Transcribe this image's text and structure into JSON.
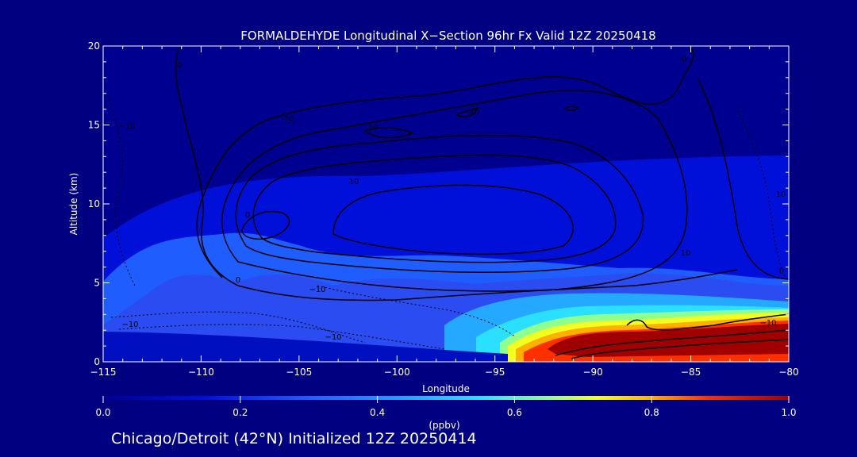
{
  "colors": {
    "background": "#000080",
    "text": "#ffffff",
    "contour": "#000000",
    "colormap": [
      "#000090",
      "#0010d8",
      "#1f5dff",
      "#25a8ff",
      "#2be0ff",
      "#8fff8f",
      "#f2ff20",
      "#ffb000",
      "#ff3000",
      "#a00000"
    ]
  },
  "chart_data": {
    "type": "heatmap",
    "title": "FORMALDEHYDE Longitudinal X−Section 96hr  Fx Valid 12Z 20250418",
    "xlabel": "Longitude",
    "ylabel": "Altitude (km)",
    "xlim": [
      -115,
      -80
    ],
    "ylim": [
      0,
      20
    ],
    "x_ticks": [
      -115,
      -110,
      -105,
      -100,
      -95,
      -90,
      -85,
      -80
    ],
    "x_tick_labels": [
      "−115",
      "−110",
      "−105",
      "−100",
      "−95",
      "−90",
      "−85",
      "−80"
    ],
    "y_ticks": [
      0,
      5,
      10,
      15,
      20
    ],
    "y_tick_labels": [
      "0",
      "5",
      "10",
      "15",
      "20"
    ],
    "colorbar": {
      "label": "(ppbv)",
      "min": 0.0,
      "max": 1.0,
      "ticks": [
        "0.0",
        "0.2",
        "0.4",
        "0.6",
        "0.8",
        "1.0"
      ]
    },
    "field_description_levels": [
      {
        "lon_range": [
          -115,
          -80
        ],
        "alt_range": [
          12,
          20
        ],
        "value": 0.02
      },
      {
        "lon_range": [
          -115,
          -80
        ],
        "alt_range": [
          6,
          12
        ],
        "value": 0.08
      },
      {
        "lon_range": [
          -115,
          -80
        ],
        "alt_range": [
          2,
          6
        ],
        "value": 0.2
      },
      {
        "lon_range": [
          -96,
          -80
        ],
        "alt_range": [
          0,
          3
        ],
        "value": 1.0
      }
    ],
    "contour_labels": [
      "0",
      "0",
      "0",
      "10",
      "10",
      "10",
      "−10",
      "−10",
      "−10",
      "−10",
      "10",
      "−10",
      "0",
      "10",
      "−10",
      "0"
    ]
  },
  "footer": "Chicago/Detroit (42°N) Initialized 12Z 20250414"
}
